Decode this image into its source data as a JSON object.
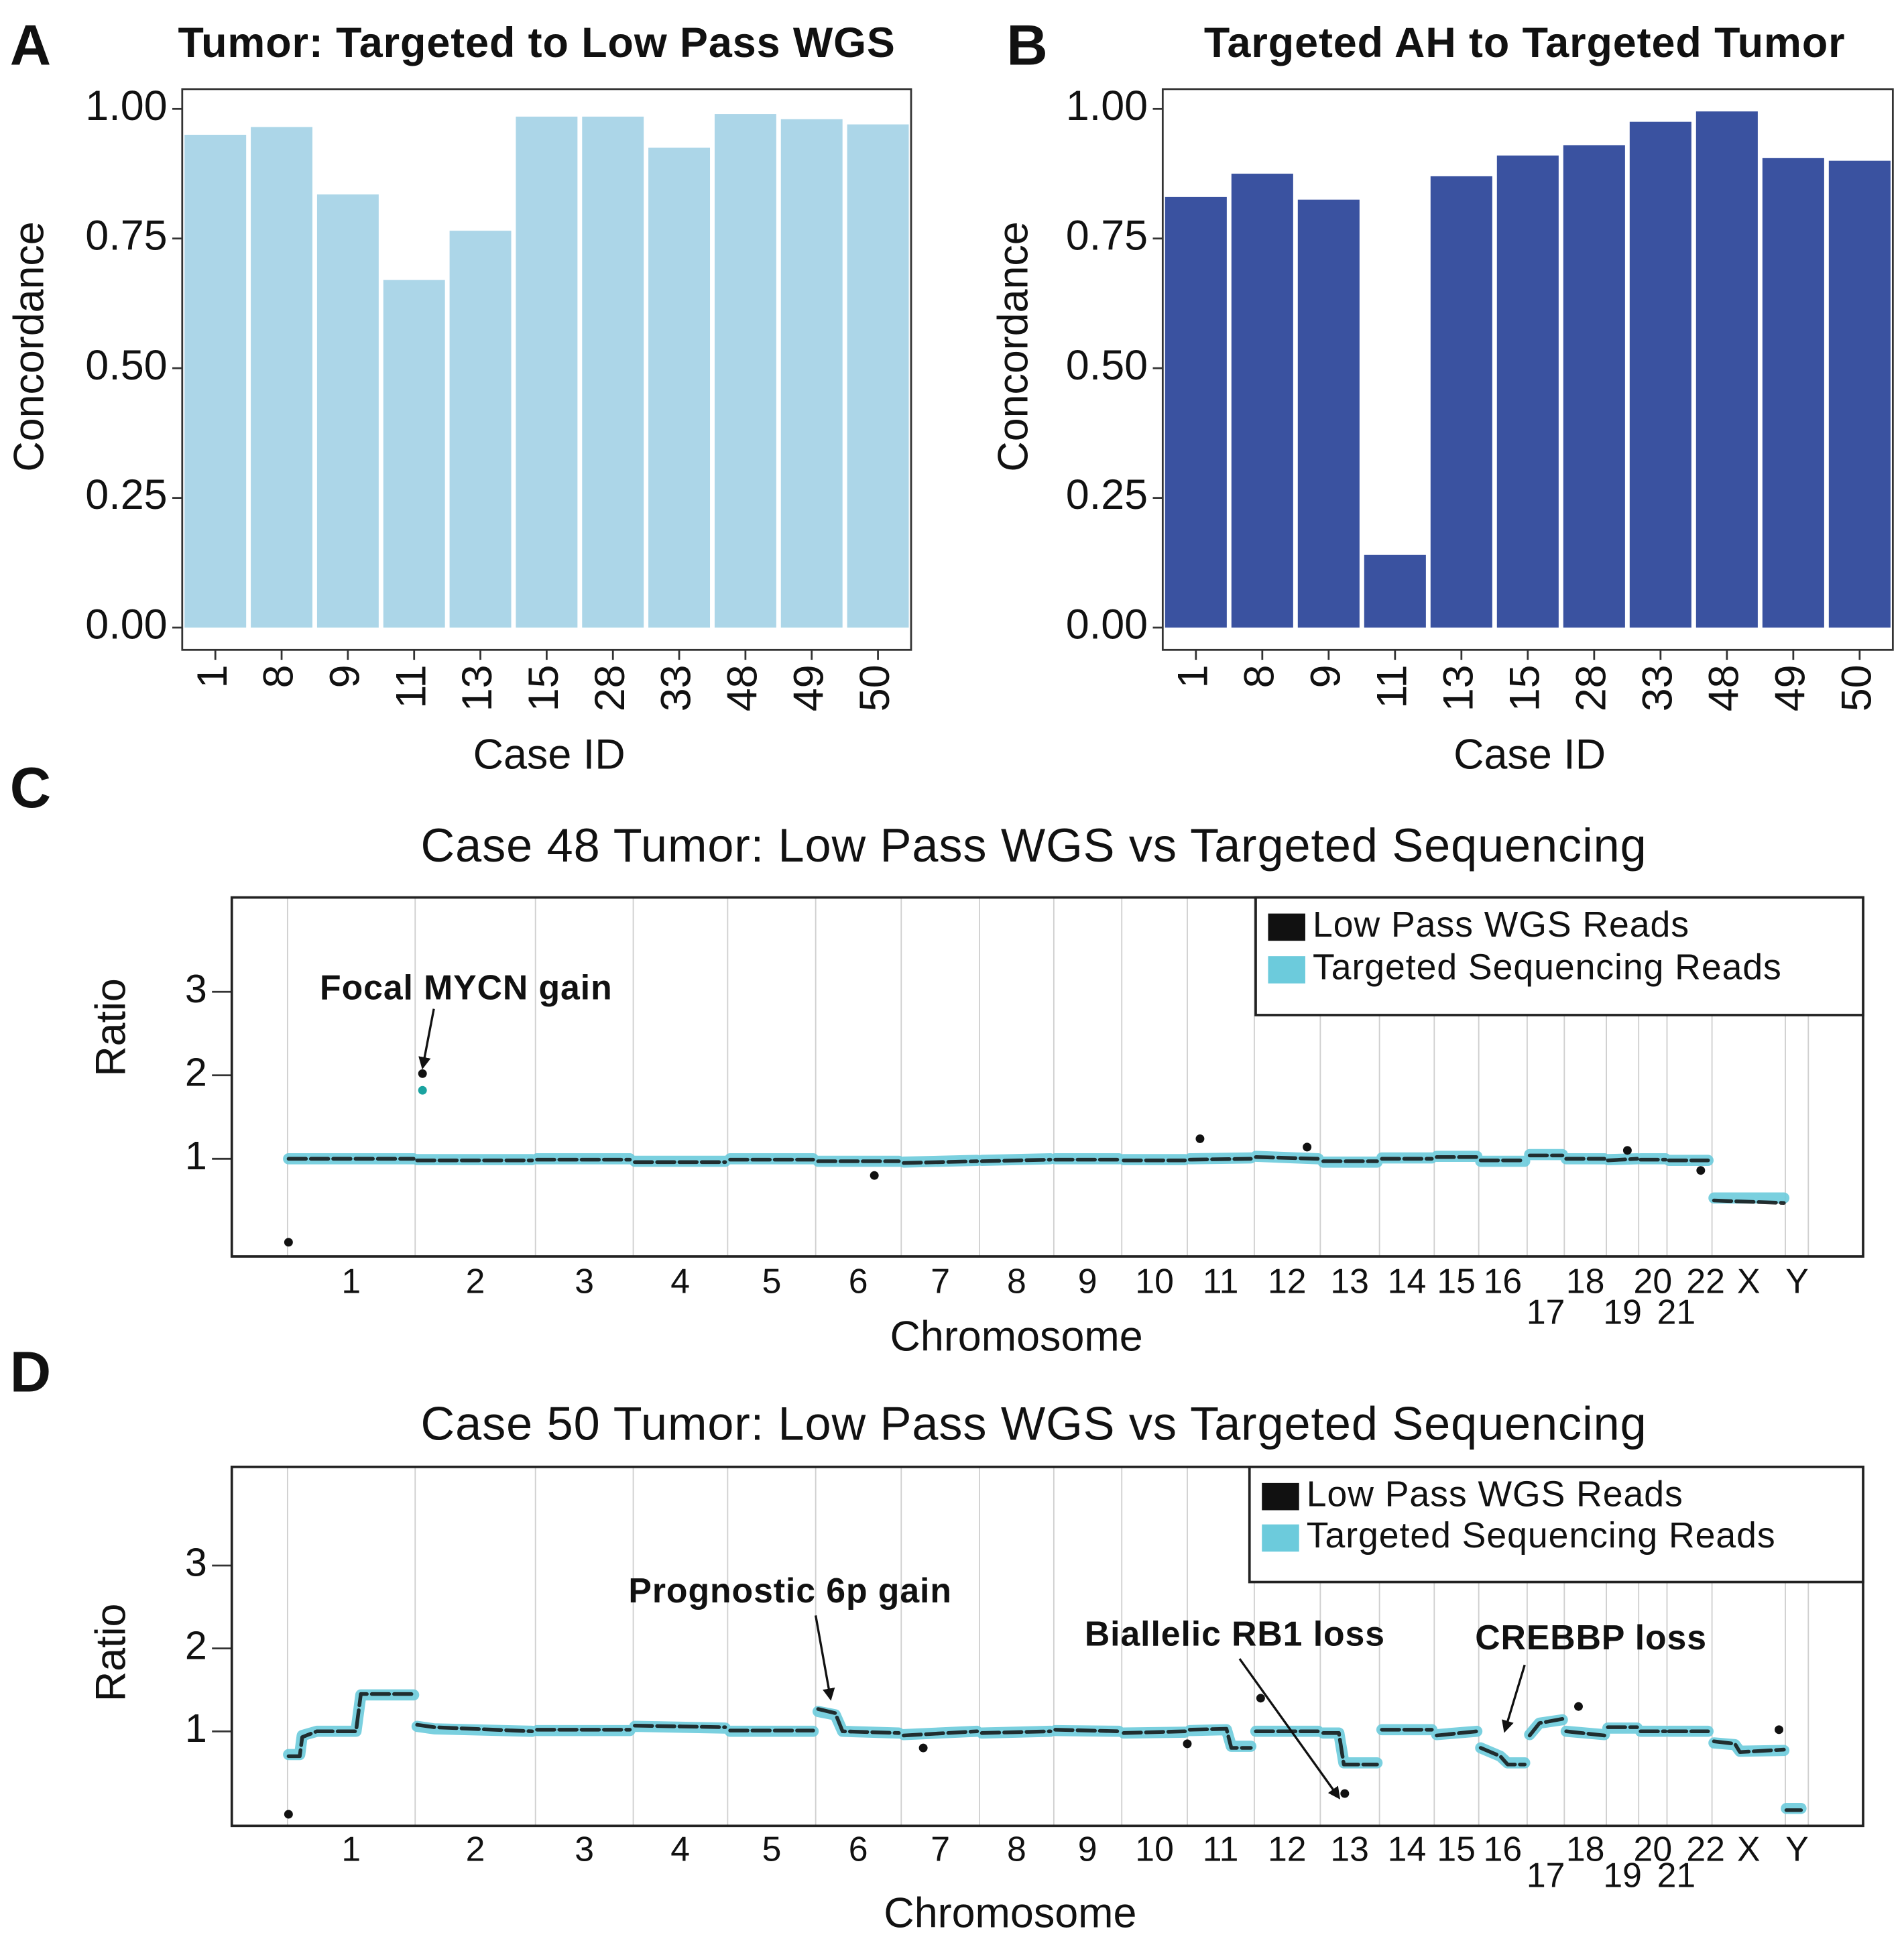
{
  "chart_data": [
    {
      "type": "bar",
      "panel": "A",
      "title": "Tumor: Targeted to Low Pass WGS",
      "x_label": "Case ID",
      "y_label": "Concordance",
      "categories": [
        "1",
        "8",
        "9",
        "11",
        "13",
        "15",
        "28",
        "33",
        "48",
        "49",
        "50"
      ],
      "values": [
        0.95,
        0.965,
        0.835,
        0.67,
        0.765,
        0.985,
        0.985,
        0.925,
        0.99,
        0.98,
        0.97
      ],
      "color": "#acd6e8",
      "ylim": [
        -0.043,
        1.038
      ],
      "yticks": [
        {
          "value": 0,
          "label": "0.00"
        },
        {
          "value": 0.25,
          "label": "0.25"
        },
        {
          "value": 0.5,
          "label": "0.50"
        },
        {
          "value": 0.75,
          "label": "0.75"
        },
        {
          "value": 1,
          "label": "1.00"
        }
      ]
    },
    {
      "type": "bar",
      "panel": "B",
      "title": "Targeted AH to Targeted Tumor",
      "x_label": "Case ID",
      "y_label": "Concordance",
      "categories": [
        "1",
        "8",
        "9",
        "11",
        "13",
        "15",
        "28",
        "33",
        "48",
        "49",
        "50"
      ],
      "values": [
        0.83,
        0.875,
        0.825,
        0.14,
        0.87,
        0.91,
        0.93,
        0.975,
        0.995,
        0.905,
        0.9
      ],
      "color": "#3a52a0",
      "ylim": [
        -0.043,
        1.038
      ],
      "yticks": [
        {
          "value": 0,
          "label": "0.00"
        },
        {
          "value": 0.25,
          "label": "0.25"
        },
        {
          "value": 0.5,
          "label": "0.50"
        },
        {
          "value": 0.75,
          "label": "0.75"
        },
        {
          "value": 1,
          "label": "1.00"
        }
      ]
    },
    {
      "type": "genome",
      "panel": "C",
      "title": "Case 48 Tumor: Low Pass WGS vs Targeted Sequencing",
      "x_label": "Chromosome",
      "y_label": "Ratio",
      "xlim": [
        -114,
        3222
      ],
      "ylim": [
        -0.17,
        4.13
      ],
      "yticks": [
        1,
        2,
        3
      ],
      "boundaries": [
        0,
        261,
        507,
        707,
        900,
        1080,
        1255,
        1415,
        1567,
        1706,
        1840,
        1977,
        2112,
        2233,
        2345,
        2436,
        2535,
        2611,
        2697,
        2763,
        2821,
        2913,
        3063,
        3110
      ],
      "xticks": [
        {
          "value": 130,
          "label": "1"
        },
        {
          "value": 384,
          "label": "2"
        },
        {
          "value": 607,
          "label": "3"
        },
        {
          "value": 803,
          "label": "4"
        },
        {
          "value": 990,
          "label": "5"
        },
        {
          "value": 1167,
          "label": "6"
        },
        {
          "value": 1335,
          "label": "7"
        },
        {
          "value": 1491,
          "label": "8"
        },
        {
          "value": 1636,
          "label": "9"
        },
        {
          "value": 1773,
          "label": "10"
        },
        {
          "value": 1908,
          "label": "11"
        },
        {
          "value": 2044,
          "label": "12"
        },
        {
          "value": 2172,
          "label": "13"
        },
        {
          "value": 2289,
          "label": "14"
        },
        {
          "value": 2390,
          "label": "15"
        },
        {
          "value": 2485,
          "label": "16"
        },
        {
          "value": 2573,
          "label": "17"
        },
        {
          "value": 2654,
          "label": "18"
        },
        {
          "value": 2730,
          "label": "19"
        },
        {
          "value": 2792,
          "label": "20"
        },
        {
          "value": 2840,
          "label": "21"
        },
        {
          "value": 2900,
          "label": "22"
        },
        {
          "value": 2988,
          "label": "X"
        },
        {
          "value": 3087,
          "label": "Y"
        }
      ],
      "series": [
        {
          "name": "Targeted Sequencing Reads",
          "color": "#6ccbdc",
          "x": [
            2,
            258,
            null,
            265,
            500,
            null,
            510,
            700,
            null,
            710,
            895,
            null,
            905,
            1075,
            null,
            1085,
            1250,
            null,
            1260,
            1410,
            null,
            1420,
            1560,
            null,
            1570,
            1700,
            null,
            1710,
            1835,
            null,
            1845,
            1970,
            null,
            1980,
            2108,
            null,
            2118,
            2228,
            null,
            2238,
            2340,
            null,
            2350,
            2432,
            null,
            2440,
            2530,
            null,
            2540,
            2607,
            null,
            2615,
            2693,
            null,
            2700,
            2760,
            null,
            2767,
            2818,
            null,
            2825,
            2905,
            null,
            2917,
            3060
          ],
          "values": [
            1.0,
            1.0,
            null,
            0.99,
            0.99,
            null,
            1.0,
            1.0,
            null,
            0.97,
            0.97,
            null,
            1.0,
            1.0,
            null,
            0.97,
            0.97,
            null,
            0.96,
            0.98,
            null,
            0.98,
            1.0,
            null,
            1.0,
            1.0,
            null,
            0.99,
            0.99,
            null,
            1.0,
            1.01,
            null,
            1.03,
            1.0,
            null,
            0.96,
            0.96,
            null,
            1.01,
            1.01,
            null,
            1.03,
            1.03,
            null,
            0.97,
            0.97,
            null,
            1.05,
            1.05,
            null,
            1.0,
            1.0,
            null,
            0.99,
            1.0,
            null,
            1.0,
            1.0,
            null,
            0.98,
            0.98,
            null,
            0.53,
            0.53
          ]
        },
        {
          "name": "Low Pass WGS Reads",
          "color": "#111111",
          "x": [
            2,
            258,
            null,
            265,
            500,
            null,
            510,
            700,
            null,
            710,
            895,
            null,
            905,
            1075,
            null,
            1085,
            1250,
            null,
            1260,
            1410,
            null,
            1420,
            1560,
            null,
            1570,
            1700,
            null,
            1710,
            1835,
            null,
            1845,
            1970,
            null,
            1980,
            2108,
            null,
            2118,
            2228,
            null,
            2238,
            2340,
            null,
            2350,
            2432,
            null,
            2440,
            2530,
            null,
            2540,
            2607,
            null,
            2615,
            2693,
            null,
            2700,
            2760,
            null,
            2767,
            2818,
            null,
            2825,
            2905,
            null,
            2917,
            3060
          ],
          "values": [
            1.0,
            1.0,
            null,
            0.98,
            0.98,
            null,
            0.99,
            0.99,
            null,
            0.96,
            0.96,
            null,
            0.99,
            0.99,
            null,
            0.97,
            0.97,
            null,
            0.95,
            0.97,
            null,
            0.97,
            0.99,
            null,
            0.99,
            0.99,
            null,
            0.98,
            0.98,
            null,
            0.99,
            1.0,
            null,
            1.02,
            1.0,
            null,
            0.97,
            0.97,
            null,
            1.0,
            1.0,
            null,
            1.02,
            1.02,
            null,
            0.98,
            0.98,
            null,
            1.04,
            1.04,
            null,
            1.0,
            1.0,
            null,
            0.98,
            1.0,
            null,
            0.99,
            0.99,
            null,
            0.98,
            0.98,
            null,
            0.5,
            0.47
          ]
        },
        {
          "color": "#111111",
          "marker": true,
          "x": [
            2,
            276,
            1866,
            2740,
            2085,
            1200,
            2890
          ],
          "values": [
            0.0,
            2.02,
            1.24,
            1.1,
            1.14,
            0.8,
            0.86
          ]
        },
        {
          "color": "#1aa3a0",
          "marker": true,
          "x": [
            276
          ],
          "values": [
            1.82
          ]
        }
      ],
      "annotations": [
        "Focal MYCN gain"
      ]
    },
    {
      "type": "genome",
      "panel": "D",
      "title": "Case 50 Tumor: Low Pass WGS vs Targeted Sequencing",
      "x_label": "Chromosome",
      "y_label": "Ratio",
      "xlim": [
        -114,
        3222
      ],
      "ylim": [
        -0.14,
        4.19
      ],
      "yticks": [
        1,
        2,
        3
      ],
      "boundaries": [
        0,
        261,
        507,
        707,
        900,
        1080,
        1255,
        1415,
        1567,
        1706,
        1840,
        1977,
        2112,
        2233,
        2345,
        2436,
        2535,
        2611,
        2697,
        2763,
        2821,
        2913,
        3063,
        3110
      ],
      "xticks": [
        {
          "value": 130,
          "label": "1"
        },
        {
          "value": 384,
          "label": "2"
        },
        {
          "value": 607,
          "label": "3"
        },
        {
          "value": 803,
          "label": "4"
        },
        {
          "value": 990,
          "label": "5"
        },
        {
          "value": 1167,
          "label": "6"
        },
        {
          "value": 1335,
          "label": "7"
        },
        {
          "value": 1491,
          "label": "8"
        },
        {
          "value": 1636,
          "label": "9"
        },
        {
          "value": 1773,
          "label": "10"
        },
        {
          "value": 1908,
          "label": "11"
        },
        {
          "value": 2044,
          "label": "12"
        },
        {
          "value": 2172,
          "label": "13"
        },
        {
          "value": 2289,
          "label": "14"
        },
        {
          "value": 2390,
          "label": "15"
        },
        {
          "value": 2485,
          "label": "16"
        },
        {
          "value": 2573,
          "label": "17"
        },
        {
          "value": 2654,
          "label": "18"
        },
        {
          "value": 2730,
          "label": "19"
        },
        {
          "value": 2792,
          "label": "20"
        },
        {
          "value": 2840,
          "label": "21"
        },
        {
          "value": 2900,
          "label": "22"
        },
        {
          "value": 2988,
          "label": "X"
        },
        {
          "value": 3087,
          "label": "Y"
        }
      ],
      "series": [
        {
          "name": "Targeted Sequencing Reads",
          "color": "#6ccbdc",
          "x": [
            2,
            25,
            30,
            60,
            140,
            150,
            258,
            null,
            265,
            300,
            500,
            null,
            510,
            700,
            null,
            710,
            895,
            null,
            905,
            1075,
            null,
            1085,
            1120,
            1135,
            1250,
            null,
            1260,
            1410,
            null,
            1420,
            1560,
            null,
            1570,
            1700,
            null,
            1710,
            1835,
            null,
            1845,
            1920,
            1930,
            1970,
            null,
            1980,
            2108,
            null,
            2118,
            2150,
            2160,
            2228,
            null,
            2238,
            2340,
            null,
            2350,
            2432,
            null,
            2440,
            2480,
            2495,
            2530,
            null,
            2540,
            2560,
            2607,
            null,
            2615,
            2693,
            null,
            2700,
            2760,
            null,
            2767,
            2818,
            null,
            2825,
            2905,
            null,
            2917,
            2960,
            2970,
            3060,
            null,
            3065,
            3095
          ],
          "values": [
            0.72,
            0.72,
            0.95,
            1.0,
            1.0,
            1.44,
            1.44,
            null,
            1.06,
            1.03,
            1.0,
            null,
            1.01,
            1.01,
            null,
            1.06,
            1.04,
            null,
            1.0,
            1.0,
            null,
            1.24,
            1.2,
            1.0,
            0.98,
            null,
            0.96,
            1.0,
            null,
            0.98,
            1.0,
            null,
            1.01,
            1.0,
            null,
            0.98,
            0.99,
            null,
            1.01,
            1.02,
            0.82,
            0.82,
            null,
            1.0,
            1.0,
            null,
            0.98,
            0.98,
            0.62,
            0.62,
            null,
            1.02,
            1.02,
            null,
            0.96,
            1.0,
            null,
            0.8,
            0.7,
            0.62,
            0.62,
            null,
            0.96,
            1.1,
            1.14,
            null,
            1.0,
            0.96,
            null,
            1.04,
            1.04,
            null,
            1.0,
            1.0,
            null,
            1.0,
            1.0,
            null,
            0.86,
            0.84,
            0.76,
            0.77,
            null,
            0.07,
            0.07
          ]
        },
        {
          "name": "Low Pass WGS Reads",
          "color": "#111111",
          "x": [
            2,
            25,
            30,
            60,
            140,
            150,
            258,
            null,
            265,
            300,
            500,
            null,
            510,
            700,
            null,
            710,
            895,
            null,
            905,
            1075,
            null,
            1085,
            1120,
            1135,
            1250,
            null,
            1260,
            1410,
            null,
            1420,
            1560,
            null,
            1570,
            1700,
            null,
            1710,
            1835,
            null,
            1845,
            1920,
            1930,
            1970,
            null,
            1980,
            2108,
            null,
            2118,
            2150,
            2160,
            2228,
            null,
            2238,
            2340,
            null,
            2350,
            2432,
            null,
            2440,
            2480,
            2495,
            2530,
            null,
            2540,
            2560,
            2607,
            null,
            2615,
            2693,
            null,
            2700,
            2760,
            null,
            2767,
            2818,
            null,
            2825,
            2905,
            null,
            2917,
            2960,
            2970,
            3060,
            null,
            3065,
            3095
          ],
          "values": [
            0.7,
            0.7,
            0.93,
            1.0,
            1.0,
            1.45,
            1.45,
            null,
            1.08,
            1.05,
            1.0,
            null,
            1.02,
            1.02,
            null,
            1.07,
            1.05,
            null,
            1.01,
            1.01,
            null,
            1.27,
            1.22,
            1.0,
            0.98,
            null,
            0.95,
            1.0,
            null,
            0.98,
            1.0,
            null,
            1.02,
            1.0,
            null,
            0.98,
            1.0,
            null,
            1.02,
            1.03,
            0.8,
            0.8,
            null,
            1.0,
            1.0,
            null,
            0.98,
            0.98,
            0.6,
            0.6,
            null,
            1.02,
            1.02,
            null,
            0.95,
            1.0,
            null,
            0.8,
            0.7,
            0.6,
            0.6,
            null,
            0.95,
            1.1,
            1.15,
            null,
            1.0,
            0.95,
            null,
            1.05,
            1.05,
            null,
            1.0,
            1.0,
            null,
            1.0,
            1.0,
            null,
            0.88,
            0.85,
            0.75,
            0.78,
            null,
            0.05,
            0.05
          ]
        },
        {
          "color": "#111111",
          "marker": true,
          "x": [
            2,
            1990,
            2162,
            1300,
            1840,
            2640,
            3050
          ],
          "values": [
            0.0,
            1.4,
            0.25,
            0.8,
            0.85,
            1.3,
            1.02
          ]
        }
      ],
      "annotations": [
        "Prognostic 6p gain",
        "Biallelic RB1 loss",
        "CREBBP loss"
      ]
    }
  ]
}
